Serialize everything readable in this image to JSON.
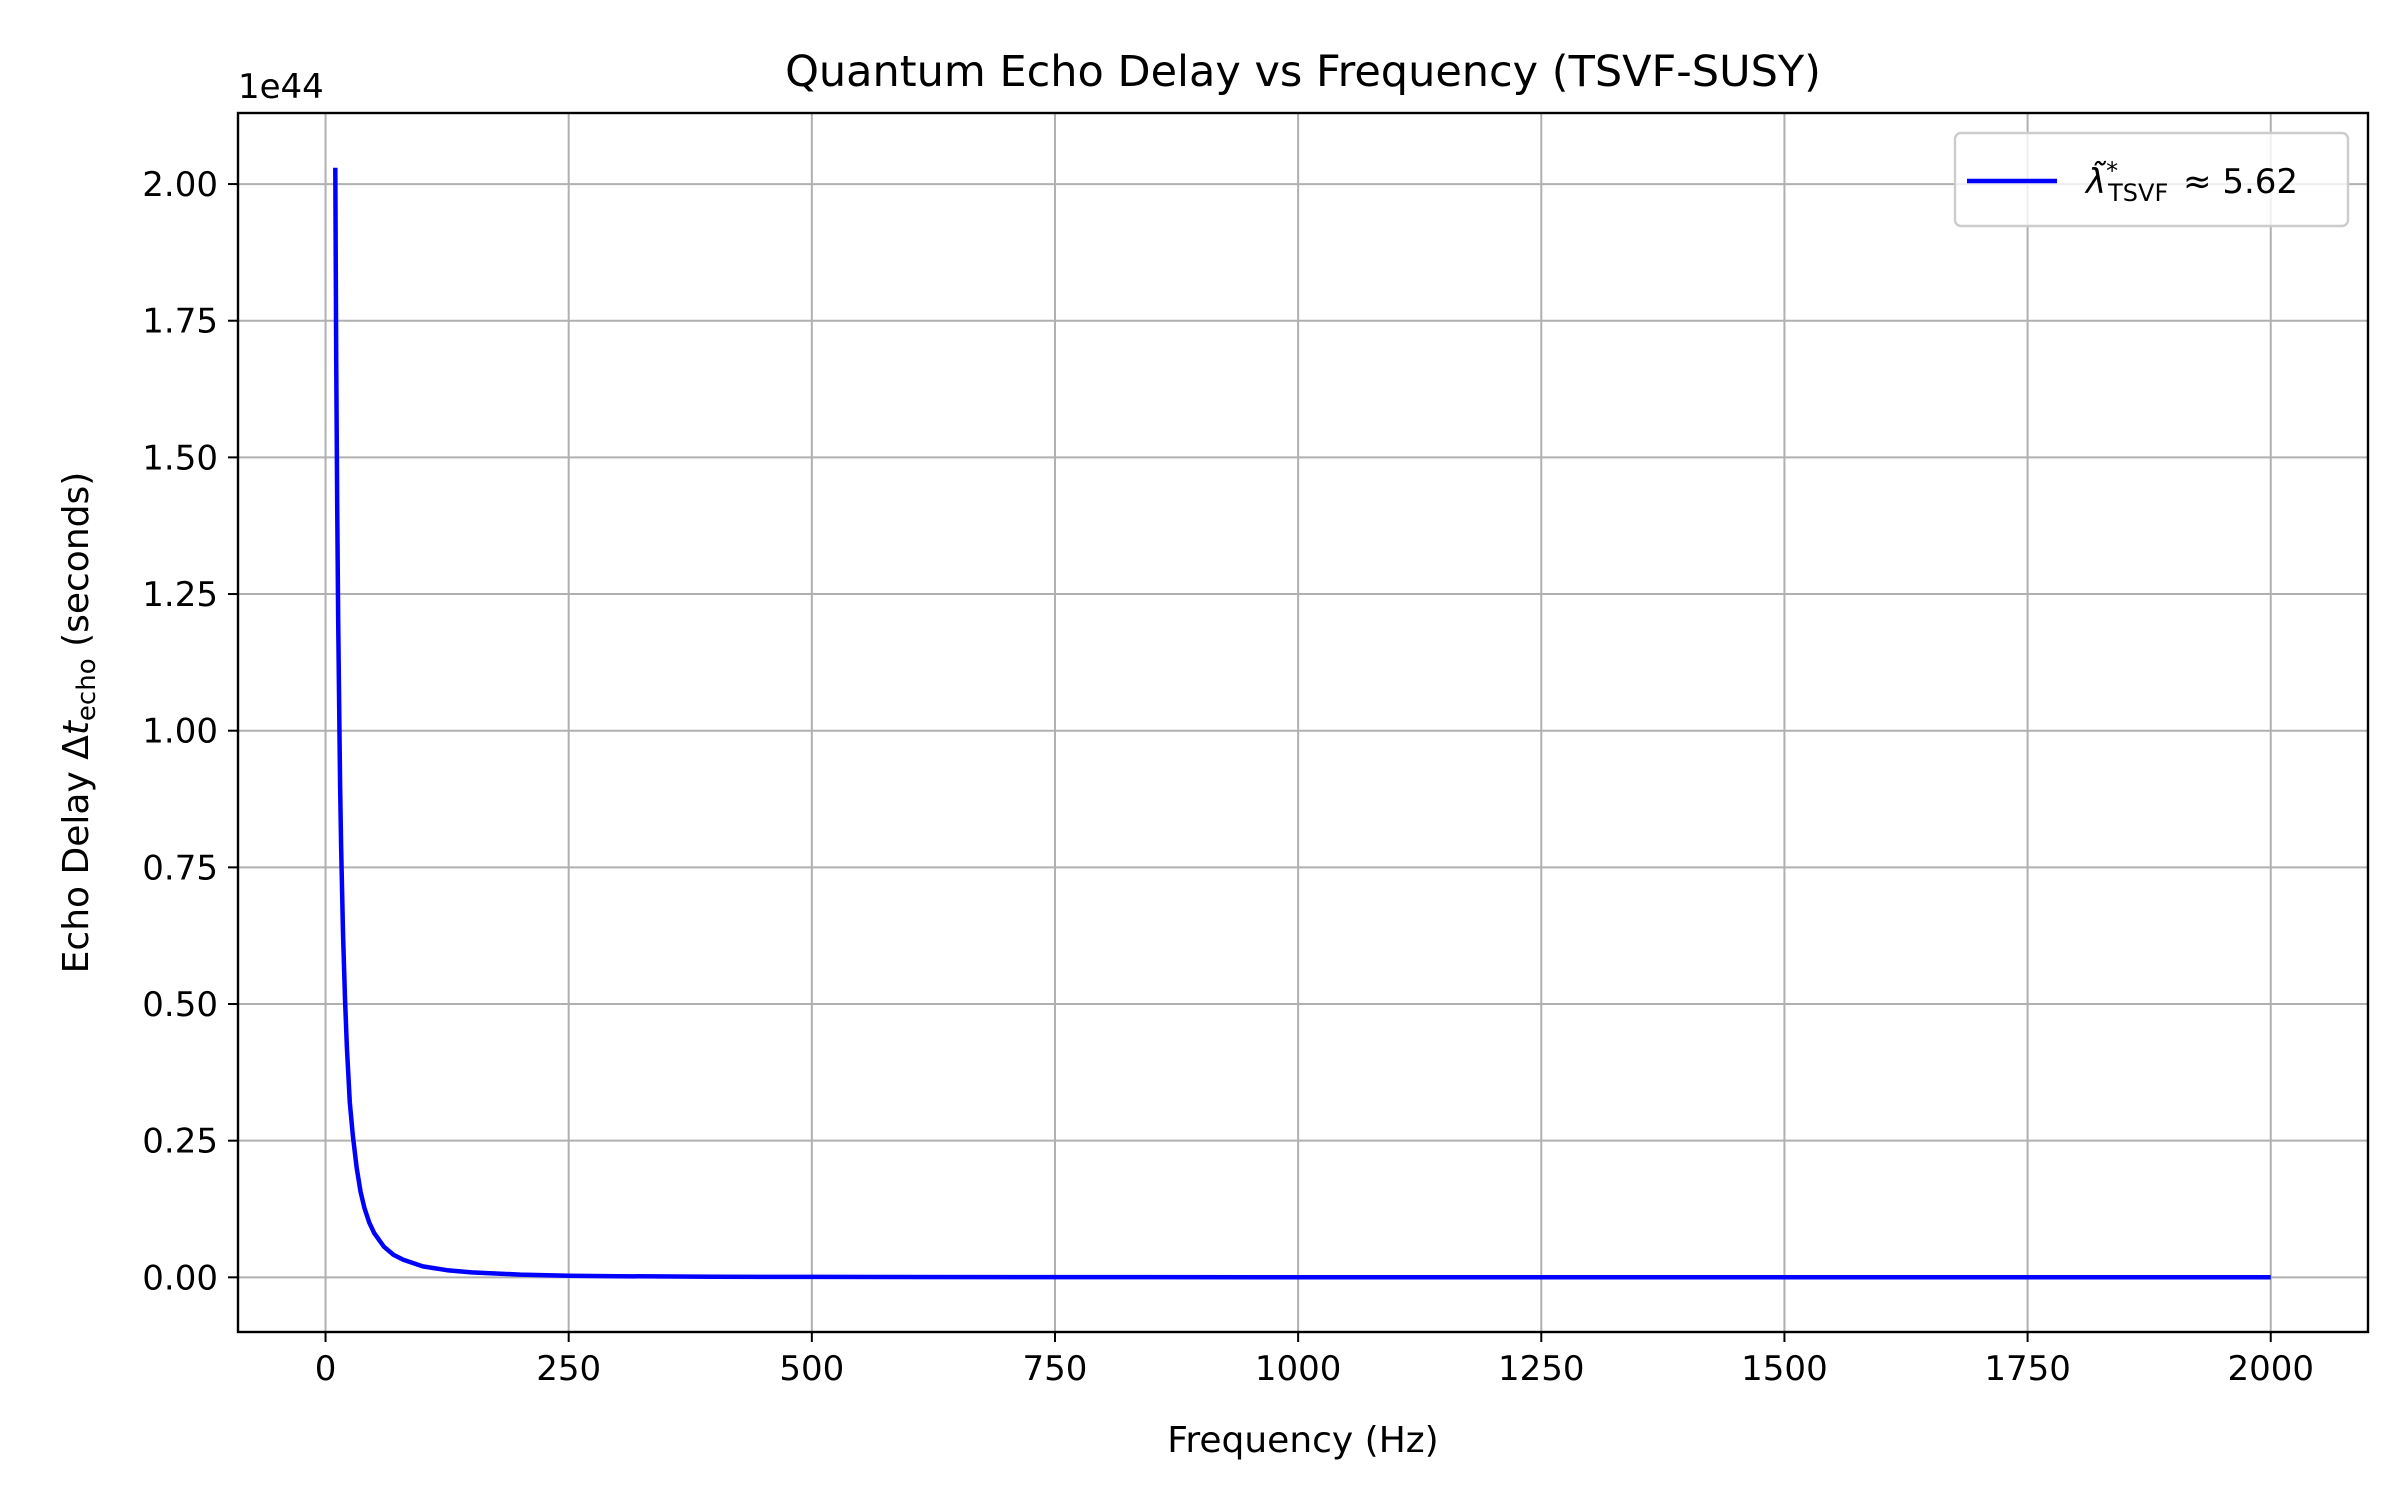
{
  "chart_data": {
    "type": "line",
    "title": "Quantum Echo Delay vs Frequency (TSVF-SUSY)",
    "xlabel": "Frequency (Hz)",
    "ylabel": {
      "prefix": "Echo Delay Δ",
      "var": "t",
      "sub": "echo",
      "suffix": " (seconds)"
    },
    "y_offset_label": "1e44",
    "y_scale_factor": 1e+44,
    "xlim": [
      -90,
      2100
    ],
    "ylim": [
      -0.1,
      2.13
    ],
    "x_ticks": [
      0,
      250,
      500,
      750,
      1000,
      1250,
      1500,
      1750,
      2000
    ],
    "x_tick_labels": [
      "0",
      "250",
      "500",
      "750",
      "1000",
      "1250",
      "1500",
      "1750",
      "2000"
    ],
    "y_ticks": [
      0,
      0.25,
      0.5,
      0.75,
      1.0,
      1.25,
      1.5,
      1.75,
      2.0
    ],
    "y_tick_labels": [
      "0.00",
      "0.25",
      "0.50",
      "0.75",
      "1.00",
      "1.25",
      "1.50",
      "1.75",
      "2.00"
    ],
    "grid": true,
    "legend_position": "top-right",
    "series": [
      {
        "name": "λ̃*TSVF ≈ 5.62",
        "legend": {
          "symbol": "λ̃",
          "sup": "*",
          "sub": "TSVF",
          "rest": " ≈ 5.62"
        },
        "color": "#0000ff",
        "x": [
          10,
          11,
          12,
          13,
          14,
          15,
          16,
          18,
          20,
          22,
          25,
          28,
          32,
          36,
          40,
          45,
          50,
          60,
          70,
          80,
          100,
          125,
          150,
          200,
          250,
          300,
          400,
          500,
          750,
          1000,
          1500,
          2000
        ],
        "values": [
          2.03,
          1.68,
          1.41,
          1.2,
          1.04,
          0.9,
          0.79,
          0.63,
          0.51,
          0.42,
          0.32,
          0.26,
          0.2,
          0.157,
          0.127,
          0.1,
          0.081,
          0.056,
          0.041,
          0.032,
          0.02,
          0.013,
          0.009,
          0.005,
          0.003,
          0.002,
          0.001,
          0.0008,
          0.0004,
          0.0002,
          0.0001,
          0.0001
        ]
      }
    ]
  }
}
